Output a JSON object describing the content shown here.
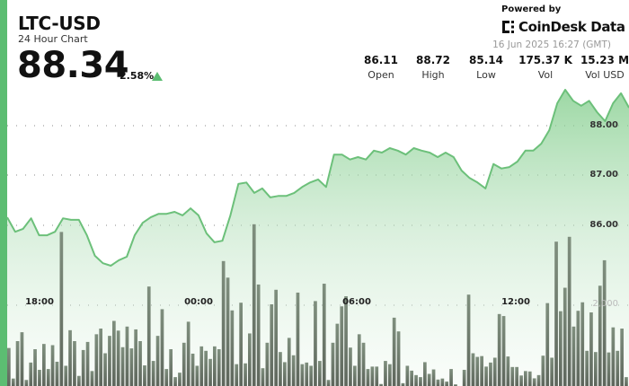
{
  "header": {
    "title": "LTC-USD",
    "subtitle": "24 Hour Chart",
    "price": "88.34",
    "change": "2.58%",
    "change_direction": "up",
    "powered_by": "Powered by",
    "brand": "CoinDesk Data",
    "timestamp": "16 Jun 2025 16:27 (GMT)"
  },
  "stats": [
    {
      "value": "86.11",
      "label": "Open"
    },
    {
      "value": "88.72",
      "label": "High"
    },
    {
      "value": "85.14",
      "label": "Low"
    },
    {
      "value": "175.37 K",
      "label": "Vol"
    },
    {
      "value": "15.23 M",
      "label": "Vol USD"
    }
  ],
  "colors": {
    "accent": "#5cbd72",
    "line": "#6cc07a",
    "volume": "#6f7b6d"
  },
  "chart_data": {
    "type": "line",
    "grid": true,
    "x_ticks": [
      "18:00",
      "00:00",
      "06:00",
      "12:00"
    ],
    "price_ticks": [
      "88.00",
      "87.00",
      "86.00"
    ],
    "volume_ticks": [
      "2,000"
    ],
    "price_range": [
      85.0,
      88.8
    ],
    "series": [
      {
        "values": [
          86.16,
          85.87,
          85.93,
          86.14,
          85.8,
          85.8,
          85.87,
          86.14,
          86.11,
          86.11,
          85.8,
          85.39,
          85.24,
          85.19,
          85.3,
          85.37,
          85.8,
          86.05,
          86.16,
          86.23,
          86.23,
          86.27,
          86.2,
          86.34,
          86.2,
          85.84,
          85.66,
          85.69,
          86.2,
          86.83,
          86.86,
          86.65,
          86.74,
          86.56,
          86.59,
          86.59,
          86.65,
          86.77,
          86.86,
          86.92,
          86.77,
          87.42,
          87.42,
          87.32,
          87.37,
          87.32,
          87.5,
          87.46,
          87.55,
          87.5,
          87.42,
          87.55,
          87.5,
          87.46,
          87.37,
          87.46,
          87.37,
          87.1,
          86.95,
          86.86,
          86.74,
          87.23,
          87.14,
          87.17,
          87.28,
          87.5,
          87.5,
          87.64,
          87.91,
          88.45,
          88.72,
          88.5,
          88.4,
          88.5,
          88.27,
          88.09,
          88.45,
          88.65,
          88.36
        ]
      },
      {
        "type": "bar",
        "values": [
          940,
          185,
          1110,
          1330,
          150,
          580,
          910,
          400,
          1040,
          420,
          1010,
          600,
          3810,
          500,
          1380,
          1110,
          250,
          890,
          1090,
          370,
          1280,
          1420,
          810,
          1240,
          1610,
          1370,
          960,
          1470,
          930,
          1400,
          1110,
          510,
          2460,
          620,
          1240,
          1900,
          420,
          910,
          220,
          330,
          1070,
          1590,
          800,
          500,
          980,
          870,
          670,
          980,
          910,
          3090,
          2680,
          1870,
          540,
          2060,
          560,
          1300,
          4000,
          2510,
          440,
          1070,
          2020,
          2380,
          840,
          590,
          1190,
          760,
          2310,
          540,
          580,
          500,
          2100,
          620,
          2530,
          150,
          1070,
          1540,
          1970,
          2220,
          950,
          500,
          1280,
          1070,
          420,
          480,
          480,
          50,
          620,
          540,
          1690,
          1350,
          70,
          500,
          380,
          270,
          220,
          590,
          300,
          410,
          160,
          185,
          110,
          420,
          40,
          0,
          400,
          2260,
          810,
          720,
          740,
          480,
          580,
          700,
          1780,
          1730,
          730,
          470,
          470,
          260,
          370,
          360,
          190,
          270,
          750,
          2050,
          700,
          3570,
          1850,
          2430,
          3690,
          1470,
          1860,
          2070,
          870,
          1820,
          840,
          2480,
          3110,
          830,
          1450,
          870,
          1420,
          220
        ]
      }
    ]
  }
}
